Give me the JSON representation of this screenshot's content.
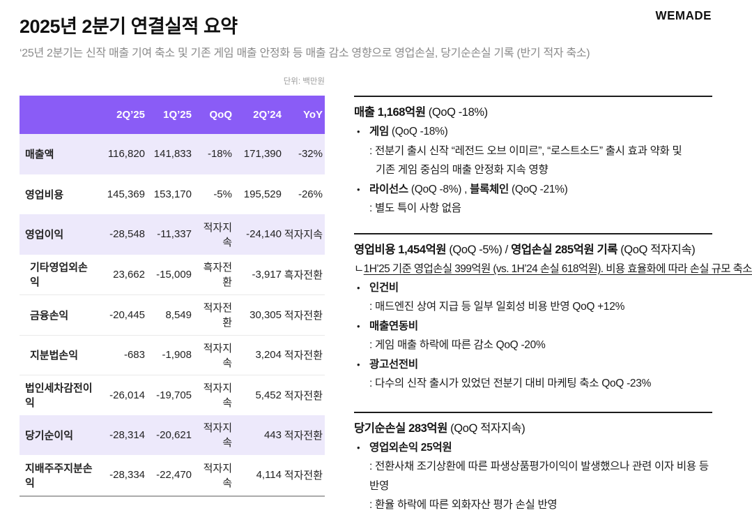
{
  "colors": {
    "accent_purple": "#8A5CF6",
    "row_highlight": "#EDE9FB",
    "rule_dark": "#1C1C1C",
    "muted_text": "#8A8A8A"
  },
  "header": {
    "title": "2025년 2분기 연결실적 요약",
    "logo_text": "WEMADE",
    "subtitle": "‘25년 2분기는 신작 매출 기여 축소 및 기존 게임 매출 안정화 등 매출 감소 영향으로 영업손실, 당기순손실 기록 (반기 적자 축소)"
  },
  "table": {
    "unit_label": "단위: 백만원",
    "columns": [
      "",
      "2Q’25",
      "1Q’25",
      "QoQ",
      "2Q’24",
      "YoY"
    ],
    "rows": [
      {
        "label": "매출액",
        "values": [
          "116,820",
          "141,833",
          "-18%",
          "171,390",
          "-32%"
        ],
        "highlight": true,
        "indent": false
      },
      {
        "label": "영업비용",
        "values": [
          "145,369",
          "153,170",
          "-5%",
          "195,529",
          "-26%"
        ],
        "highlight": false,
        "indent": false
      },
      {
        "label": "영업이익",
        "values": [
          "-28,548",
          "-11,337",
          "적자지속",
          "-24,140",
          "적자지속"
        ],
        "highlight": true,
        "indent": false
      },
      {
        "label": "기타영업외손익",
        "values": [
          "23,662",
          "-15,009",
          "흑자전환",
          "-3,917",
          "흑자전환"
        ],
        "highlight": false,
        "indent": true
      },
      {
        "label": "금융손익",
        "values": [
          "-20,445",
          "8,549",
          "적자전환",
          "30,305",
          "적자전환"
        ],
        "highlight": false,
        "indent": true
      },
      {
        "label": "지분법손익",
        "values": [
          "-683",
          "-1,908",
          "적자지속",
          "3,204",
          "적자전환"
        ],
        "highlight": false,
        "indent": true
      },
      {
        "label": "법인세차감전이익",
        "values": [
          "-26,014",
          "-19,705",
          "적자지속",
          "5,452",
          "적자전환"
        ],
        "highlight": false,
        "indent": false
      },
      {
        "label": "당기순이익",
        "values": [
          "-28,314",
          "-20,621",
          "적자지속",
          "443",
          "적자전환"
        ],
        "highlight": true,
        "indent": false
      },
      {
        "label": "지배주주지분손익",
        "values": [
          "-28,334",
          "-22,470",
          "적자지속",
          "4,114",
          "적자전환"
        ],
        "highlight": false,
        "indent": false
      }
    ]
  },
  "sections": [
    {
      "name": "revenue",
      "gap_class": "sec-gap-1",
      "heading": [
        {
          "text": "매출 1,168억원",
          "bold": true
        },
        {
          "text": " (QoQ -18%)",
          "bold": false
        }
      ],
      "subheading": null,
      "items": [
        {
          "label": [
            {
              "text": "게임",
              "bold": true
            },
            {
              "text": " (QoQ -18%)",
              "bold": false
            }
          ],
          "details": [
            {
              "text": ": 전분기 출시 신작 “레전드 오브 이미르”, “로스트소드” 출시 효과 약화 및",
              "continuation": false
            },
            {
              "text": "기존 게임 중심의 매출 안정화 지속 영향",
              "continuation": true
            }
          ]
        },
        {
          "label": [
            {
              "text": "라이선스",
              "bold": true
            },
            {
              "text": " (QoQ -8%) , ",
              "bold": false
            },
            {
              "text": "블록체인",
              "bold": true
            },
            {
              "text": " (QoQ -21%)",
              "bold": false
            }
          ],
          "details": [
            {
              "text": ": 별도 특이 사항 없음",
              "continuation": false
            }
          ]
        }
      ]
    },
    {
      "name": "operating-cost",
      "gap_class": "sec-gap-2",
      "heading": [
        {
          "text": "영업비용 1,454억원",
          "bold": true
        },
        {
          "text": " (QoQ -5%) / ",
          "bold": false
        },
        {
          "text": "영업손실 285억원 기록",
          "bold": true
        },
        {
          "text": " (QoQ 적자지속)",
          "bold": false
        }
      ],
      "subheading": {
        "prefix": "ㄴ",
        "underlined": "1H’25 기준 영업손실 399억원 (vs. 1H’24 손실 618억원). 비용 효율화에 따라 손실 규모 축소"
      },
      "items": [
        {
          "label": [
            {
              "text": "인건비",
              "bold": true
            }
          ],
          "details": [
            {
              "text": ": 매드엔진 상여 지급 등 일부 일회성 비용 반영 QoQ +12%",
              "continuation": false
            }
          ]
        },
        {
          "label": [
            {
              "text": "매출연동비",
              "bold": true
            }
          ],
          "details": [
            {
              "text": ": 게임 매출 하락에 따른 감소 QoQ -20%",
              "continuation": false
            }
          ]
        },
        {
          "label": [
            {
              "text": "광고선전비",
              "bold": true
            }
          ],
          "details": [
            {
              "text": ": 다수의 신작 출시가 있었던 전분기 대비 마케팅 축소 QoQ -23%",
              "continuation": false
            }
          ]
        }
      ]
    },
    {
      "name": "net-loss",
      "gap_class": "",
      "heading": [
        {
          "text": "당기순손실 283억원",
          "bold": true
        },
        {
          "text": " (QoQ 적자지속)",
          "bold": false
        }
      ],
      "subheading": null,
      "items": [
        {
          "label": [
            {
              "text": "영업외손익 25억원",
              "bold": true
            }
          ],
          "details": [
            {
              "text": ": 전환사채 조기상환에 따른 파생상품평가이익이 발생했으나 관련 이자 비용 등 반영",
              "continuation": false
            },
            {
              "text": ": 환율 하락에 따른 외화자산 평가 손실 반영",
              "continuation": false
            }
          ]
        }
      ]
    }
  ]
}
